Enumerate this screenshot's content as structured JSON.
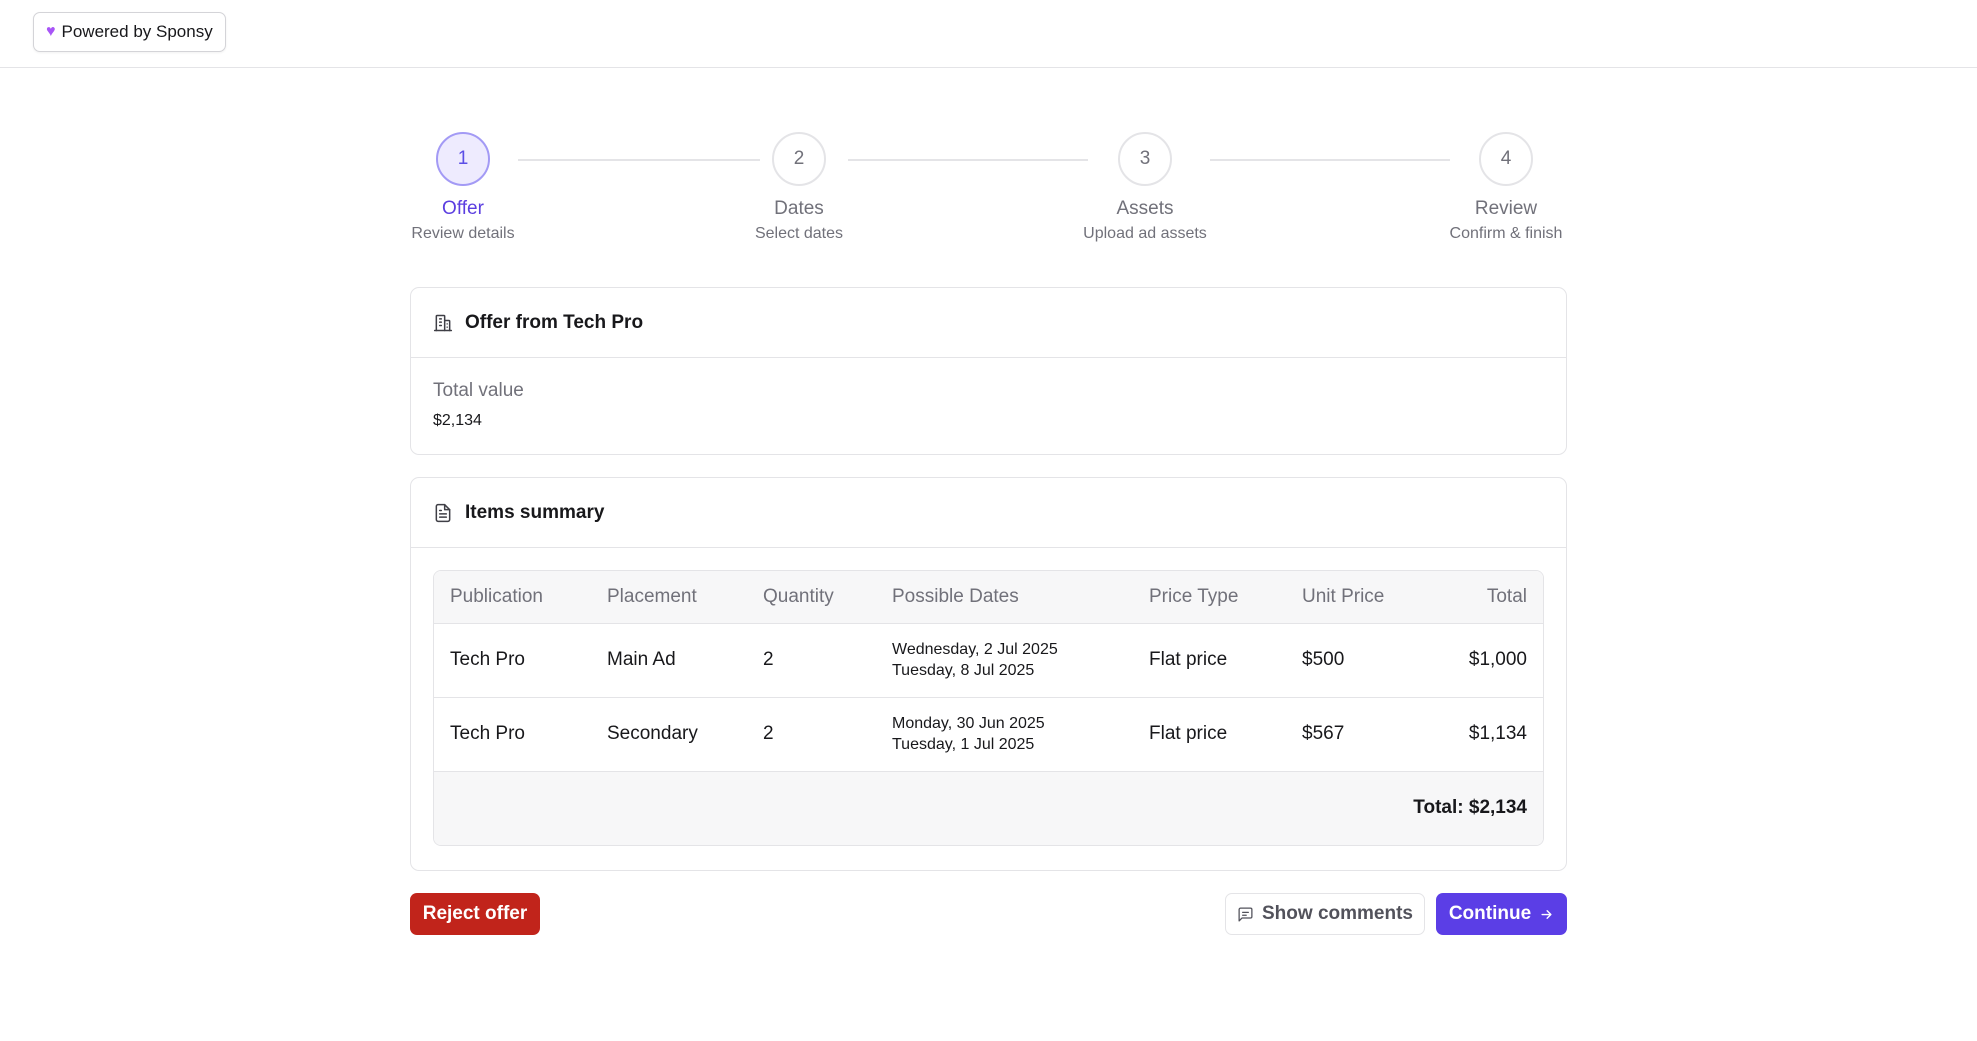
{
  "topbar": {
    "powered_label": "Powered by Sponsy",
    "heart_icon": "purple-heart-icon"
  },
  "stepper": {
    "steps": [
      {
        "number": "1",
        "title": "Offer",
        "subtitle": "Review details",
        "state": "active"
      },
      {
        "number": "2",
        "title": "Dates",
        "subtitle": "Select dates",
        "state": "upcoming"
      },
      {
        "number": "3",
        "title": "Assets",
        "subtitle": "Upload ad assets",
        "state": "upcoming"
      },
      {
        "number": "4",
        "title": "Review",
        "subtitle": "Confirm & finish",
        "state": "upcoming"
      }
    ]
  },
  "offer": {
    "title": "Offer from Tech Pro",
    "icon": "building-icon",
    "total_label": "Total value",
    "total_value": "$2,134"
  },
  "items": {
    "title": "Items summary",
    "icon": "document-icon",
    "columns": [
      "Publication",
      "Placement",
      "Quantity",
      "Possible Dates",
      "Price Type",
      "Unit Price",
      "Total"
    ],
    "rows": [
      {
        "publication": "Tech Pro",
        "placement": "Main Ad",
        "quantity": "2",
        "date1": "Wednesday, 2 Jul 2025",
        "date2": "Tuesday, 8 Jul 2025",
        "price_type": "Flat price",
        "unit_price": "$500",
        "total": "$1,000"
      },
      {
        "publication": "Tech Pro",
        "placement": "Secondary",
        "quantity": "2",
        "date1": "Monday, 30 Jun 2025",
        "date2": "Tuesday, 1 Jul 2025",
        "price_type": "Flat price",
        "unit_price": "$567",
        "total": "$1,134"
      }
    ],
    "grand_total": "Total: $2,134"
  },
  "actions": {
    "reject_label": "Reject offer",
    "comments_label": "Show comments",
    "continue_label": "Continue",
    "continue_icon": "arrow-right-icon",
    "comments_icon": "message-square-icon"
  },
  "colors": {
    "accent": "#5b3ee6",
    "danger": "#c1241b",
    "muted": "#71717a",
    "border": "#e4e4e7"
  }
}
